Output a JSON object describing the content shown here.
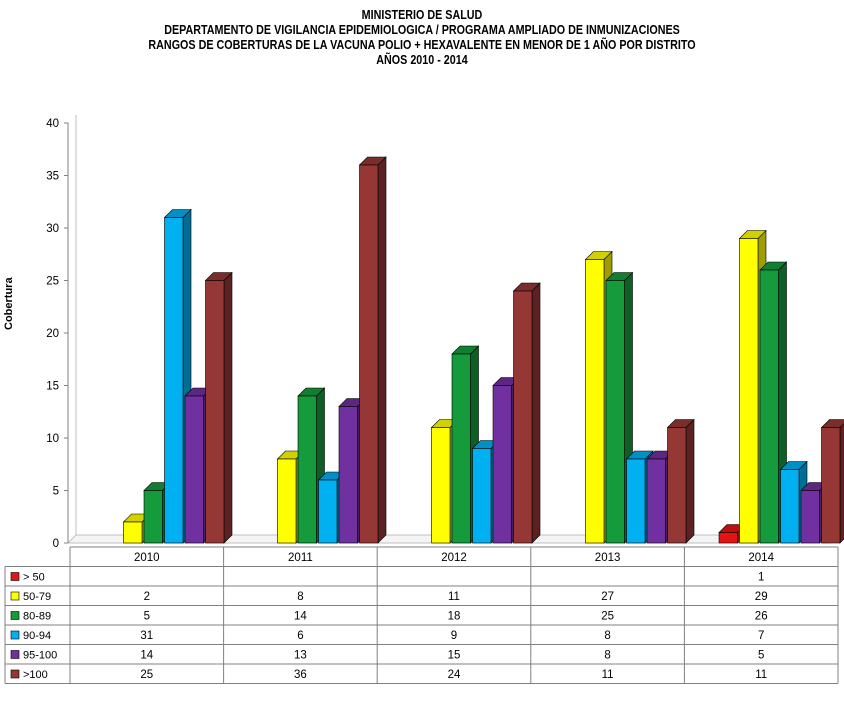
{
  "chart_data": {
    "type": "bar",
    "title_lines": [
      "MINISTERIO DE SALUD",
      "DEPARTAMENTO DE VIGILANCIA EPIDEMIOLOGICA / PROGRAMA AMPLIADO DE INMUNIZACIONES",
      "RANGOS DE COBERTURAS  DE LA VACUNA POLIO + HEXAVALENTE EN MENOR DE  1 AÑO POR DISTRITO",
      "AÑOS  2010 - 2014"
    ],
    "ylabel": "Cobertura",
    "xlabel": "",
    "ylim": [
      0,
      40
    ],
    "yticks": [
      0,
      5,
      10,
      15,
      20,
      25,
      30,
      35,
      40
    ],
    "categories": [
      "2010",
      "2011",
      "2012",
      "2013",
      "2014"
    ],
    "series": [
      {
        "name": "> 50",
        "color": "#e41414",
        "values": [
          null,
          null,
          null,
          null,
          1
        ]
      },
      {
        "name": "50-79",
        "color": "#ffff00",
        "values": [
          2,
          8,
          11,
          27,
          29
        ]
      },
      {
        "name": "80-89",
        "color": "#159a3c",
        "values": [
          5,
          14,
          18,
          25,
          26
        ]
      },
      {
        "name": "90-94",
        "color": "#00b0f0",
        "values": [
          31,
          6,
          9,
          8,
          7
        ]
      },
      {
        "name": "95-100",
        "color": "#7030a0",
        "values": [
          14,
          13,
          15,
          8,
          5
        ]
      },
      {
        "name": ">100",
        "color": "#953735",
        "values": [
          25,
          36,
          24,
          11,
          11
        ]
      }
    ],
    "legend": "data-table-below",
    "grid": false,
    "style": "3d-clustered-column"
  }
}
